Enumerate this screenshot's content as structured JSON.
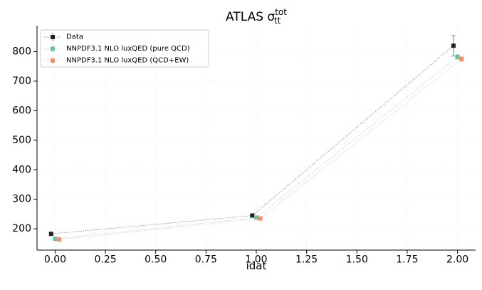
{
  "chart_data": {
    "type": "line",
    "title": {
      "main": "ATLAS σ",
      "sup": "tot",
      "sub": "tt"
    },
    "xlabel": "idat",
    "ylabel": "",
    "xlim": [
      -0.09,
      2.09
    ],
    "ylim": [
      128,
      888
    ],
    "x_ticks": [
      0.0,
      0.25,
      0.5,
      0.75,
      1.0,
      1.25,
      1.5,
      1.75,
      2.0
    ],
    "x_tick_labels": [
      "0.00",
      "0.25",
      "0.50",
      "0.75",
      "1.00",
      "1.25",
      "1.50",
      "1.75",
      "2.00"
    ],
    "y_ticks": [
      200,
      300,
      400,
      500,
      600,
      700,
      800
    ],
    "y_tick_labels": [
      "200",
      "300",
      "400",
      "500",
      "600",
      "700",
      "800"
    ],
    "grid": true,
    "legend_position": "top-left",
    "series": [
      {
        "name": "Data",
        "color": "#222222",
        "x": [
          -0.02,
          0.98,
          1.98
        ],
        "values": [
          183,
          245,
          820
        ],
        "errors": [
          4,
          6,
          35
        ]
      },
      {
        "name": "NNPDF3.1 NLO luxQED (pure QCD)",
        "color": "#66c2a5",
        "x": [
          0.0,
          1.0,
          2.0
        ],
        "values": [
          166,
          238,
          782
        ],
        "errors": [
          3,
          4,
          8
        ]
      },
      {
        "name": "NNPDF3.1 NLO luxQED (QCD+EW)",
        "color": "#fc8d62",
        "x": [
          0.02,
          1.02,
          2.02
        ],
        "values": [
          164,
          235,
          775
        ],
        "errors": [
          3,
          4,
          8
        ]
      }
    ]
  }
}
